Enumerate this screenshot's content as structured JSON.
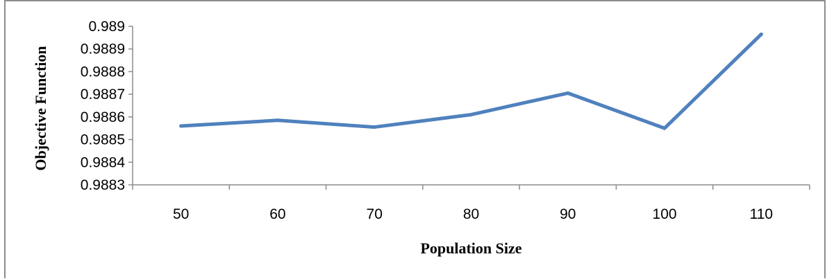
{
  "chart_data": {
    "type": "line",
    "xlabel": "Population Size",
    "ylabel": "Objective Function",
    "categories": [
      "50",
      "60",
      "70",
      "80",
      "90",
      "100",
      "110"
    ],
    "series": [
      {
        "values": [
          0.98856,
          0.988585,
          0.988555,
          0.98861,
          0.988705,
          0.98855,
          0.988965
        ],
        "color": "#4f81bd"
      }
    ],
    "ylim": [
      0.9883,
      0.989
    ],
    "yticks": [
      "0.9883",
      "0.9884",
      "0.9885",
      "0.9886",
      "0.9887",
      "0.9888",
      "0.9889",
      "0.989"
    ],
    "grid": false,
    "legend": "none"
  }
}
